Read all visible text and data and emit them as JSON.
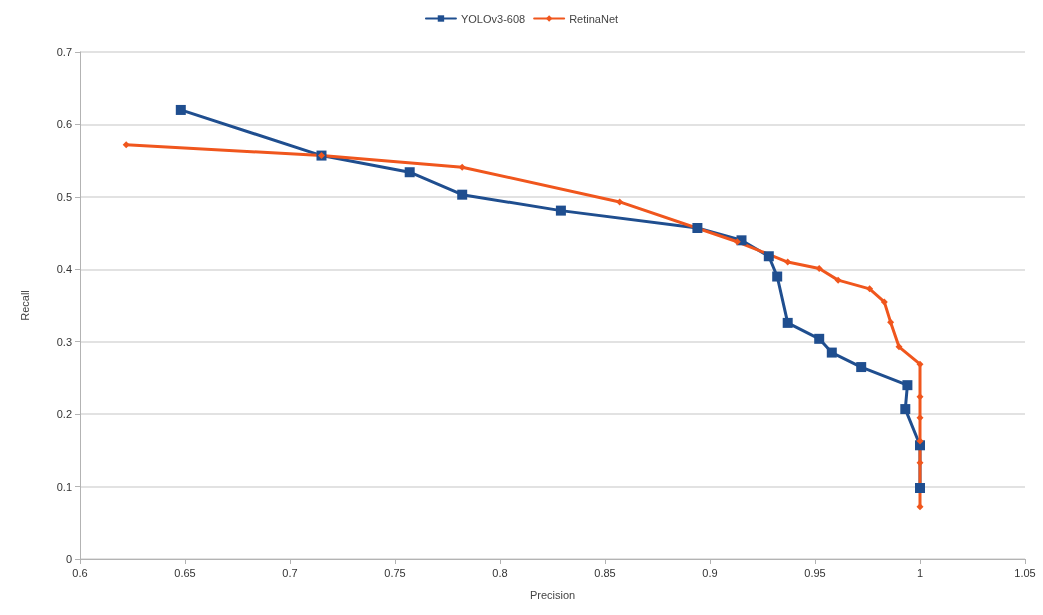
{
  "chart_data": {
    "type": "line",
    "xlabel": "Precision",
    "ylabel": "Recall",
    "xlim": [
      0.6,
      1.05
    ],
    "xticks": [
      0.6,
      0.65,
      0.7,
      0.75,
      0.8,
      0.85,
      0.9,
      0.95,
      1,
      1.05
    ],
    "ylim": [
      0,
      0.7
    ],
    "yticks": [
      0,
      0.1,
      0.2,
      0.3,
      0.4,
      0.5,
      0.6,
      0.7
    ],
    "grid": "y",
    "legend": "top",
    "line_style": "solid",
    "series": [
      {
        "name": "YOLOv3-608",
        "color": "#1f4e8f",
        "marker": "square",
        "x": [
          0.648,
          0.715,
          0.757,
          0.782,
          0.829,
          0.894,
          0.915,
          0.928,
          0.932,
          0.937,
          0.952,
          0.958,
          0.972,
          0.994,
          0.993,
          1.0,
          1.0
        ],
        "values": [
          0.62,
          0.557,
          0.534,
          0.503,
          0.481,
          0.457,
          0.44,
          0.418,
          0.39,
          0.326,
          0.304,
          0.285,
          0.265,
          0.24,
          0.207,
          0.157,
          0.098
        ]
      },
      {
        "name": "RetinaNet",
        "color": "#f0561d",
        "marker": "diamond",
        "x": [
          0.622,
          0.715,
          0.782,
          0.857,
          0.913,
          0.937,
          0.952,
          0.961,
          0.976,
          0.983,
          0.986,
          0.99,
          1.0,
          1.0,
          1.0,
          1.0,
          1.0,
          1.0
        ],
        "values": [
          0.572,
          0.557,
          0.541,
          0.493,
          0.438,
          0.41,
          0.401,
          0.385,
          0.373,
          0.355,
          0.327,
          0.293,
          0.269,
          0.224,
          0.195,
          0.163,
          0.133,
          0.072
        ]
      }
    ]
  }
}
